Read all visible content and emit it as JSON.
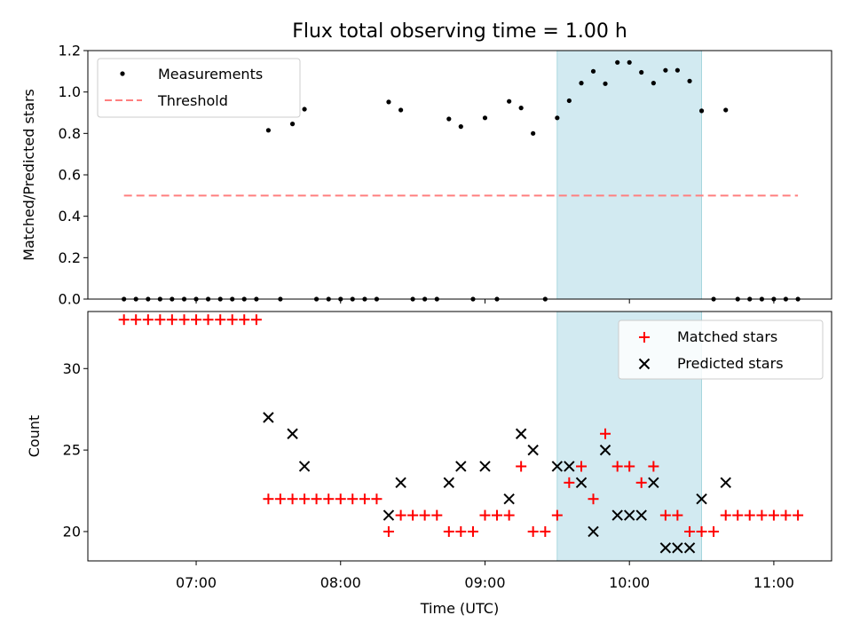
{
  "title": "Flux total observing time = 1.00 h",
  "chart_data": [
    {
      "type": "scatter",
      "ylabel": "Matched/Predicted stars",
      "xlim": [
        6.25,
        11.4
      ],
      "ylim": [
        0,
        1.2
      ],
      "yticks": [
        0.0,
        0.2,
        0.4,
        0.6,
        0.8,
        1.0,
        1.2
      ],
      "ytick_labels": [
        "0.0",
        "0.2",
        "0.4",
        "0.6",
        "0.8",
        "1.0",
        "1.2"
      ],
      "highlight_span": [
        9.5,
        10.5
      ],
      "legend_position": "upper left",
      "series": [
        {
          "name": "Measurements",
          "marker": "dot",
          "color": "#000000",
          "x": [
            6.5,
            6.583,
            6.667,
            6.75,
            6.833,
            6.917,
            7.0,
            7.083,
            7.167,
            7.25,
            7.333,
            7.417,
            7.5,
            7.583,
            7.667,
            7.75,
            7.833,
            7.917,
            8.0,
            8.083,
            8.167,
            8.25,
            8.333,
            8.417,
            8.5,
            8.583,
            8.667,
            8.75,
            8.833,
            8.917,
            9.0,
            9.083,
            9.167,
            9.25,
            9.333,
            9.417,
            9.5,
            9.583,
            9.667,
            9.75,
            9.833,
            9.917,
            10.0,
            10.083,
            10.167,
            10.25,
            10.333,
            10.417,
            10.5,
            10.583,
            10.667,
            10.75,
            10.833,
            10.917,
            11.0,
            11.083,
            11.167
          ],
          "y": [
            0.0,
            0.0,
            0.0,
            0.0,
            0.0,
            0.0,
            0.0,
            0.0,
            0.0,
            0.0,
            0.0,
            0.0,
            0.815,
            0.0,
            0.846,
            0.917,
            0.0,
            0.0,
            0.0,
            0.0,
            0.0,
            0.0,
            0.952,
            0.913,
            0.0,
            0.0,
            0.0,
            0.87,
            0.833,
            0.0,
            0.875,
            0.0,
            0.955,
            0.923,
            0.8,
            0.0,
            0.875,
            0.958,
            1.043,
            1.1,
            1.04,
            1.143,
            1.143,
            1.095,
            1.043,
            1.105,
            1.105,
            1.053,
            0.909,
            0.0,
            0.913,
            0.0,
            0.0,
            0.0,
            0.0,
            0.0,
            0.0
          ]
        },
        {
          "name": "Threshold",
          "marker": "dashed-line",
          "color": "#ff7f7f",
          "x": [
            6.5,
            11.167
          ],
          "y": [
            0.5,
            0.5
          ]
        }
      ]
    },
    {
      "type": "scatter",
      "xlabel": "Time (UTC)",
      "ylabel": "Count",
      "xlim": [
        6.25,
        11.4
      ],
      "ylim": [
        18.2,
        33.5
      ],
      "xticks": [
        7,
        8,
        9,
        10,
        11
      ],
      "xtick_labels": [
        "07:00",
        "08:00",
        "09:00",
        "10:00",
        "11:00"
      ],
      "yticks": [
        20,
        25,
        30
      ],
      "ytick_labels": [
        "20",
        "25",
        "30"
      ],
      "highlight_span": [
        9.5,
        10.5
      ],
      "legend_position": "upper right",
      "series": [
        {
          "name": "Matched stars",
          "marker": "plus",
          "color": "#ff0000",
          "x": [
            6.5,
            6.583,
            6.667,
            6.75,
            6.833,
            6.917,
            7.0,
            7.083,
            7.167,
            7.25,
            7.333,
            7.417,
            7.5,
            7.583,
            7.667,
            7.75,
            7.833,
            7.917,
            8.0,
            8.083,
            8.167,
            8.25,
            8.333,
            8.417,
            8.5,
            8.583,
            8.667,
            8.75,
            8.833,
            8.917,
            9.0,
            9.083,
            9.167,
            9.25,
            9.333,
            9.417,
            9.5,
            9.583,
            9.667,
            9.75,
            9.833,
            9.917,
            10.0,
            10.083,
            10.167,
            10.25,
            10.333,
            10.417,
            10.5,
            10.583,
            10.667,
            10.75,
            10.833,
            10.917,
            11.0,
            11.083,
            11.167
          ],
          "y": [
            33,
            33,
            33,
            33,
            33,
            33,
            33,
            33,
            33,
            33,
            33,
            33,
            22,
            22,
            22,
            22,
            22,
            22,
            22,
            22,
            22,
            22,
            20,
            21,
            21,
            21,
            21,
            20,
            20,
            20,
            21,
            21,
            21,
            24,
            20,
            20,
            21,
            23,
            24,
            22,
            26,
            24,
            24,
            23,
            24,
            21,
            21,
            20,
            20,
            20,
            21,
            21,
            21,
            21,
            21,
            21,
            21
          ]
        },
        {
          "name": "Predicted stars",
          "marker": "x",
          "color": "#000000",
          "x": [
            7.5,
            7.667,
            7.75,
            8.333,
            8.417,
            8.75,
            8.833,
            9.0,
            9.167,
            9.25,
            9.333,
            9.5,
            9.583,
            9.667,
            9.75,
            9.833,
            9.917,
            10.0,
            10.083,
            10.167,
            10.25,
            10.333,
            10.417,
            10.5,
            10.667
          ],
          "y": [
            27,
            26,
            24,
            21,
            23,
            23,
            24,
            24,
            22,
            26,
            25,
            24,
            24,
            23,
            20,
            25,
            21,
            21,
            21,
            23,
            19,
            19,
            19,
            22,
            23
          ]
        }
      ]
    }
  ],
  "colors": {
    "span_fill": "#add8e6",
    "matched": "#ff0000",
    "predicted": "#000000",
    "measurement": "#000000",
    "threshold": "#ff7f7f"
  }
}
